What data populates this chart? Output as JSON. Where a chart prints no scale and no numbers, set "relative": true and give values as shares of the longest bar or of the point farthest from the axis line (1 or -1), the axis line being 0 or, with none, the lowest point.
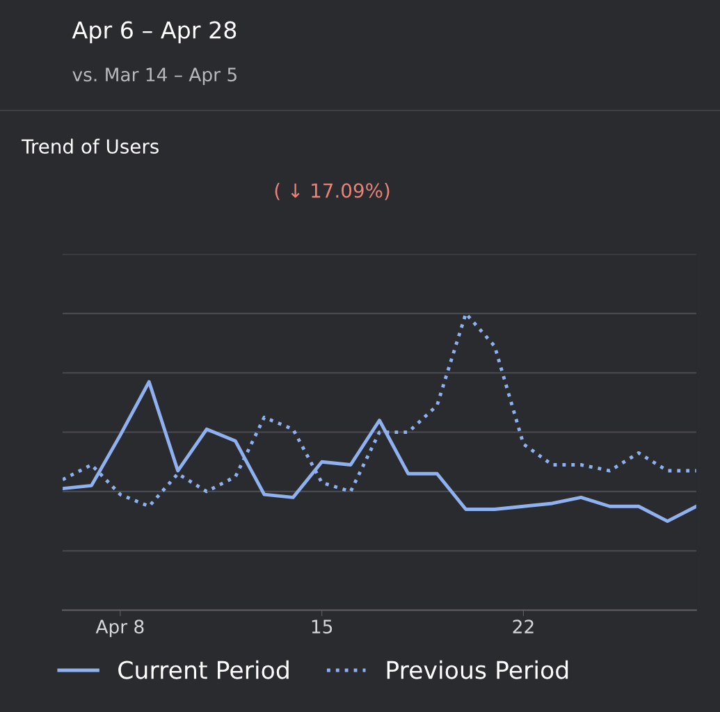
{
  "chart_data": {
    "type": "line",
    "title": "Apr 6 – Apr 28",
    "subtitle": "vs. Mar 14 – Apr 5",
    "annotations": [
      "Trend of Users",
      "( ↓ 17.09%)"
    ],
    "relative": true,
    "x": [
      6,
      7,
      8,
      9,
      10,
      11,
      12,
      13,
      14,
      15,
      16,
      17,
      18,
      19,
      20,
      21,
      22,
      23,
      24,
      25,
      26,
      27,
      28
    ],
    "xlim": [
      6,
      28
    ],
    "xticks": [
      {
        "value": 8,
        "label": "Apr 8"
      },
      15,
      22
    ],
    "grid": "y",
    "legend": "bottom",
    "series": [
      {
        "name": "Current Period",
        "color": "#8fb1f0",
        "line_style": "solid",
        "values": [
          0.41,
          0.42,
          0.59,
          0.77,
          0.47,
          0.61,
          0.57,
          0.39,
          0.38,
          0.5,
          0.49,
          0.64,
          0.46,
          0.46,
          0.34,
          0.34,
          0.35,
          0.36,
          0.38,
          0.35,
          0.35,
          0.3,
          0.35
        ]
      },
      {
        "name": "Previous Period",
        "color": "#8fb1f0",
        "line_style": "dotted",
        "values": [
          0.44,
          0.49,
          0.39,
          0.35,
          0.46,
          0.4,
          0.45,
          0.65,
          0.61,
          0.43,
          0.4,
          0.6,
          0.6,
          0.69,
          1.0,
          0.89,
          0.56,
          0.49,
          0.49,
          0.47,
          0.53,
          0.47,
          0.47
        ]
      }
    ]
  }
}
